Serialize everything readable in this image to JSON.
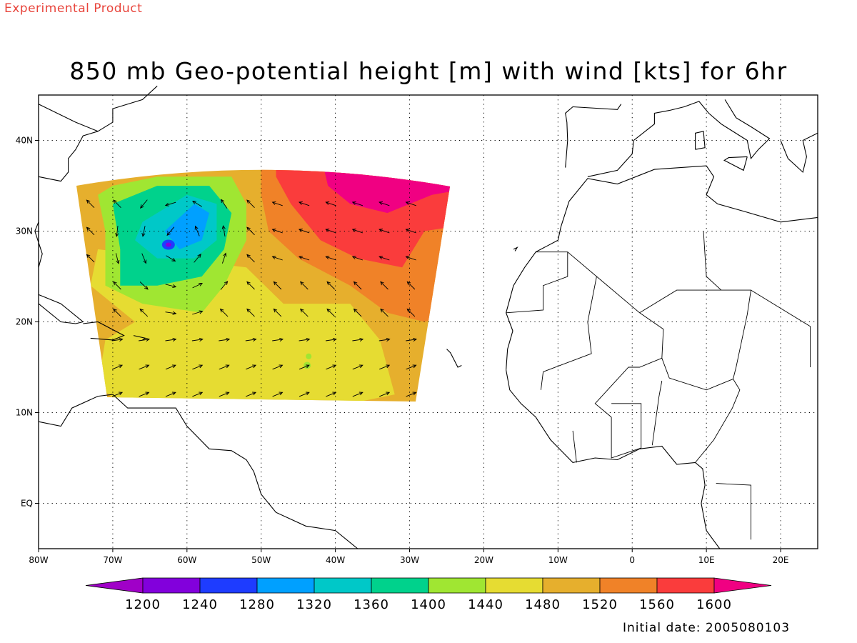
{
  "header": {
    "label": "Experimental Product"
  },
  "title": "850 mb Geo-potential height [m] with wind [kts] for 6hr",
  "footer": {
    "initial_date": "Initial date: 2005080103"
  },
  "chart_data": {
    "type": "heatmap",
    "title": "850 mb Geo-potential height [m] with wind [kts] for 6hr",
    "xlim": [
      -80,
      25
    ],
    "ylim": [
      -5,
      45
    ],
    "x_ticks": [
      {
        "value": -80,
        "label": "80W"
      },
      {
        "value": -70,
        "label": "70W"
      },
      {
        "value": -60,
        "label": "60W"
      },
      {
        "value": -50,
        "label": "50W"
      },
      {
        "value": -40,
        "label": "40W"
      },
      {
        "value": -30,
        "label": "30W"
      },
      {
        "value": -20,
        "label": "20W"
      },
      {
        "value": -10,
        "label": "10W"
      },
      {
        "value": 0,
        "label": "0"
      },
      {
        "value": 10,
        "label": "10E"
      },
      {
        "value": 20,
        "label": "20E"
      }
    ],
    "y_ticks": [
      {
        "value": 40,
        "label": "40N"
      },
      {
        "value": 30,
        "label": "30N"
      },
      {
        "value": 20,
        "label": "20N"
      },
      {
        "value": 10,
        "label": "10N"
      },
      {
        "value": 0,
        "label": "EQ"
      }
    ],
    "grid": true,
    "colorbar": {
      "levels": [
        1200,
        1240,
        1280,
        1320,
        1360,
        1400,
        1440,
        1480,
        1520,
        1560,
        1600
      ],
      "colors": [
        "#a000c8",
        "#8200dc",
        "#1e3cff",
        "#00a0ff",
        "#00c8c8",
        "#00d28c",
        "#a0e632",
        "#e6dc32",
        "#e6af2d",
        "#f08228",
        "#fa3c3c",
        "#f00082"
      ]
    },
    "wind_arrows": "~100 vectors (kts) over the domain; predominantly anticyclonic flow around the high over the central Atlantic, cyclonic circulation around the low near 62W 28N"
  }
}
